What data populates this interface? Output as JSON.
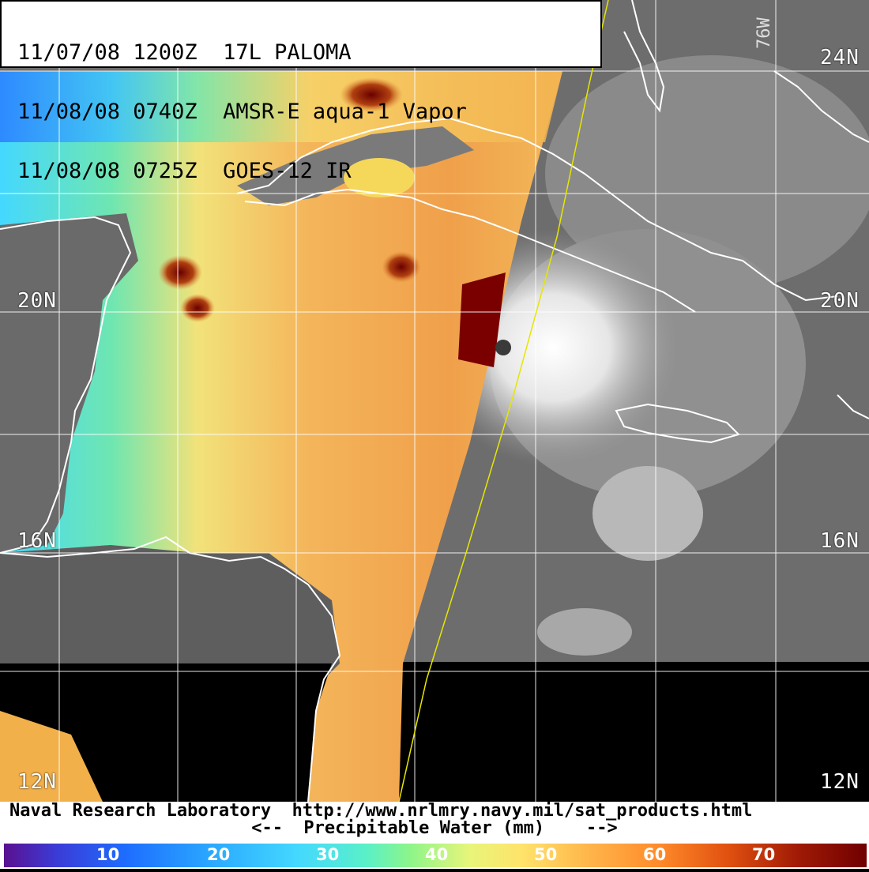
{
  "header": {
    "line1": "11/07/08 1200Z  17L PALOMA",
    "line2": "11/08/08 0740Z  AMSR-E aqua-1 Vapor",
    "line3": "11/08/08 0725Z  GOES-12 IR"
  },
  "grid_labels": {
    "lat_24_right": "24N",
    "lat_20_left": "20N",
    "lat_20_right": "20N",
    "lat_16_left": "16N",
    "lat_16_right": "16N",
    "lat_12_left": "12N",
    "lat_12_right": "12N",
    "lon_76": "76W"
  },
  "footer": {
    "credit": "Naval Research Laboratory  http://www.nrlmry.navy.mil/sat_products.html",
    "caption": "<--  Precipitable Water (mm)    -->"
  },
  "colorbar": {
    "ticks": [
      "10",
      "20",
      "30",
      "40",
      "50",
      "60",
      "70"
    ]
  },
  "colors": {
    "ir_gray": "#6a6a6a",
    "coast": "#ffffff",
    "grid": "#ffffff",
    "orbit_track": "#e6e600",
    "storm_core": "#7a0000"
  }
}
